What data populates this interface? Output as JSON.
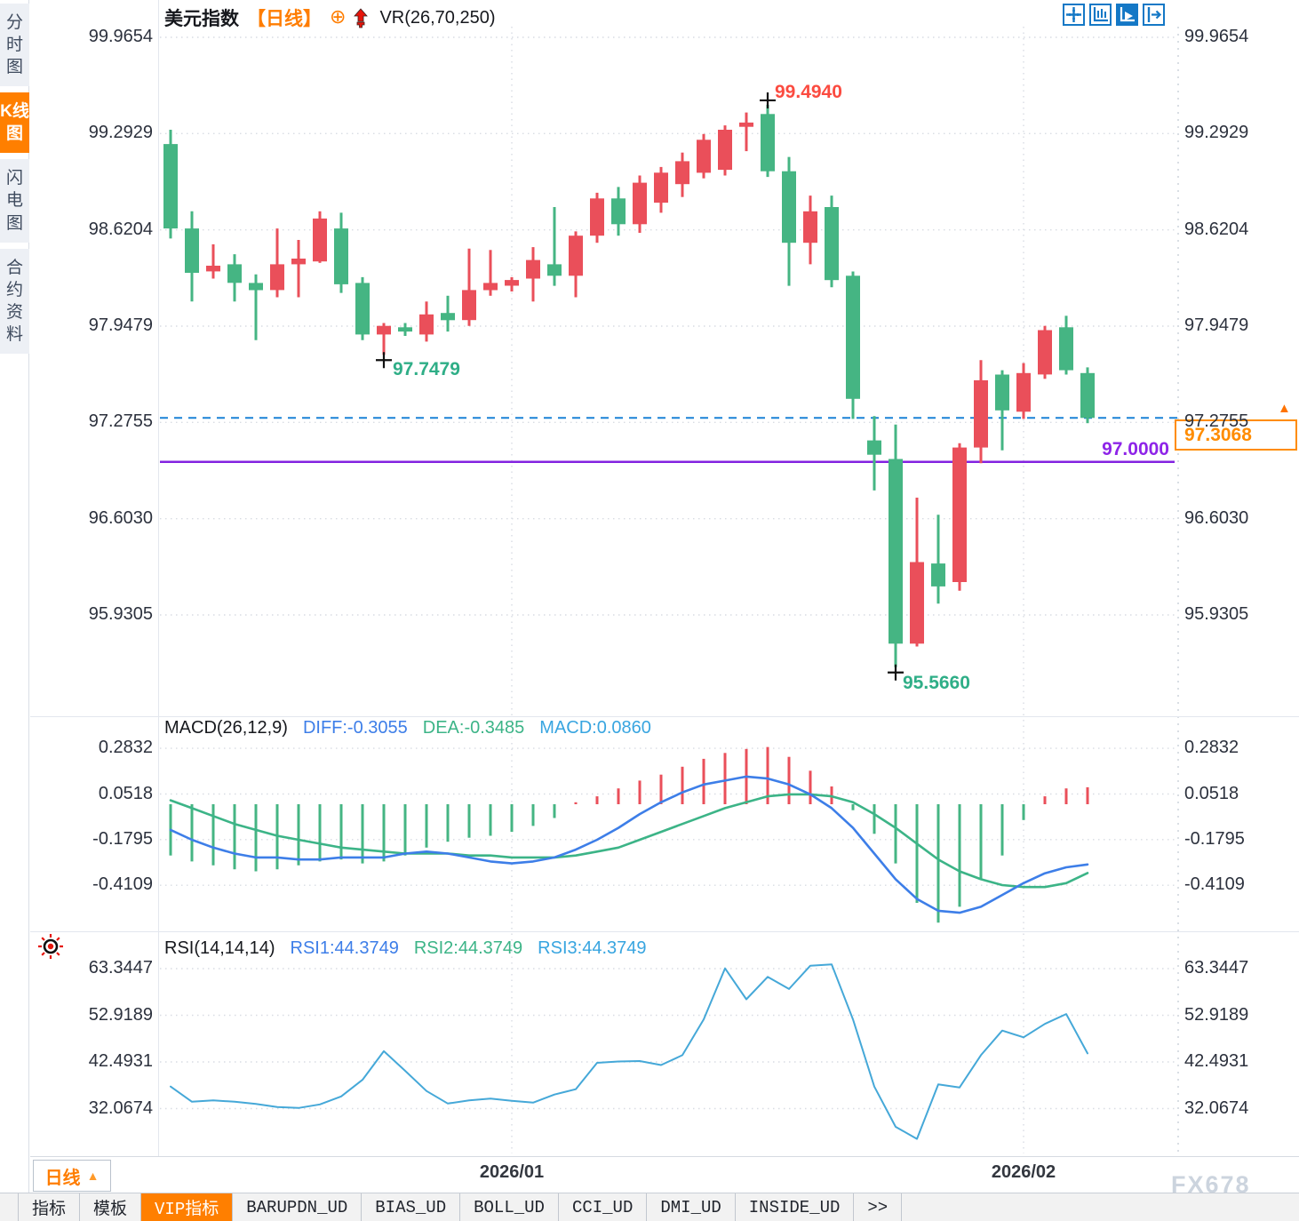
{
  "header": {
    "symbol": "美元指数",
    "period_tag": "【日线】",
    "overlay_indicator": "VR(26,70,250)",
    "toolbar_icons": [
      "crosshair-move-icon",
      "axis-range-icon",
      "axis-cursor-icon",
      "pan-right-icon"
    ]
  },
  "sidebar": {
    "items": [
      {
        "label": "分时图",
        "active": false
      },
      {
        "label": "K线图",
        "active": true
      },
      {
        "label": "闪电图",
        "active": false
      },
      {
        "label": "合约资料",
        "active": false
      }
    ]
  },
  "chart_data": [
    {
      "id": "price",
      "type": "candlestick",
      "symbol": "美元指数",
      "period": "日线",
      "up_color": "#ea4f5a",
      "down_color": "#45b583",
      "y_axis_labels": [
        "99.9654",
        "99.2929",
        "98.6204",
        "97.9479",
        "97.2755",
        "96.6030",
        "95.9305"
      ],
      "x_ticks": [
        {
          "label": "2026/01",
          "bar": 16
        },
        {
          "label": "2026/02",
          "bar": 40
        }
      ],
      "candles_ohlc": [
        [
          99.22,
          99.32,
          98.56,
          98.63
        ],
        [
          98.63,
          98.75,
          98.12,
          98.32
        ],
        [
          98.33,
          98.52,
          98.28,
          98.37
        ],
        [
          98.38,
          98.45,
          98.12,
          98.25
        ],
        [
          98.25,
          98.31,
          97.85,
          98.2
        ],
        [
          98.2,
          98.63,
          98.15,
          98.38
        ],
        [
          98.38,
          98.55,
          98.15,
          98.42
        ],
        [
          98.4,
          98.75,
          98.39,
          98.7
        ],
        [
          98.63,
          98.74,
          98.18,
          98.24
        ],
        [
          98.25,
          98.29,
          97.85,
          97.89
        ],
        [
          97.89,
          97.97,
          97.7479,
          97.95
        ],
        [
          97.94,
          97.97,
          97.88,
          97.91
        ],
        [
          97.89,
          98.12,
          97.84,
          98.03
        ],
        [
          98.04,
          98.16,
          97.91,
          97.99
        ],
        [
          97.99,
          98.49,
          97.95,
          98.2
        ],
        [
          98.2,
          98.48,
          98.16,
          98.25
        ],
        [
          98.23,
          98.29,
          98.19,
          98.27
        ],
        [
          98.28,
          98.5,
          98.12,
          98.41
        ],
        [
          98.38,
          98.78,
          98.23,
          98.3
        ],
        [
          98.3,
          98.61,
          98.15,
          98.58
        ],
        [
          98.58,
          98.88,
          98.53,
          98.84
        ],
        [
          98.84,
          98.92,
          98.58,
          98.66
        ],
        [
          98.66,
          99.0,
          98.6,
          98.95
        ],
        [
          98.81,
          99.06,
          98.74,
          99.02
        ],
        [
          98.94,
          99.16,
          98.85,
          99.1
        ],
        [
          99.02,
          99.29,
          98.98,
          99.25
        ],
        [
          99.04,
          99.35,
          99.0,
          99.32
        ],
        [
          99.34,
          99.44,
          99.17,
          99.37
        ],
        [
          99.43,
          99.494,
          98.99,
          99.03
        ],
        [
          99.03,
          99.13,
          98.23,
          98.53
        ],
        [
          98.53,
          98.86,
          98.38,
          98.75
        ],
        [
          98.78,
          98.86,
          98.22,
          98.27
        ],
        [
          98.3,
          98.33,
          97.3,
          97.44
        ],
        [
          97.15,
          97.32,
          96.8,
          97.05
        ],
        [
          97.02,
          97.26,
          95.566,
          95.73
        ],
        [
          95.73,
          96.75,
          95.71,
          96.3
        ],
        [
          96.29,
          96.63,
          96.01,
          96.13
        ],
        [
          96.16,
          97.13,
          96.1,
          97.1
        ],
        [
          97.1,
          97.71,
          96.99,
          97.57
        ],
        [
          97.61,
          97.64,
          97.08,
          97.36
        ],
        [
          97.35,
          97.69,
          97.3,
          97.62
        ],
        [
          97.61,
          97.95,
          97.58,
          97.92
        ],
        [
          97.94,
          98.02,
          97.61,
          97.64
        ],
        [
          97.62,
          97.66,
          97.27,
          97.3068
        ]
      ],
      "annotations": {
        "high_label": "99.4940",
        "high_bar": 28,
        "high_price": 99.494,
        "low_label": "97.7479",
        "low_bar": 10,
        "low_price": 97.7479,
        "crash_low_label": "95.5660",
        "crash_low_bar": 34,
        "crash_low_price": 95.566,
        "hline_label": "97.0000",
        "hline_value": 97.0,
        "hline_color": "#8322e0",
        "last_price_label": "97.3068",
        "last_price": 97.3068,
        "last_line_color": "#1a82d6",
        "tag_arrow": "▲"
      }
    },
    {
      "id": "macd",
      "type": "macd",
      "title": "MACD(26,12,9)",
      "legend": [
        {
          "label": "DIFF:-0.3055",
          "color": "#3d7ee8"
        },
        {
          "label": "DEA:-0.3485",
          "color": "#3cb487"
        },
        {
          "label": "MACD:0.0860",
          "color": "#38a5e0"
        }
      ],
      "y_axis_labels": [
        "0.2832",
        "0.0518",
        "-0.1795",
        "-0.4109"
      ],
      "histogram": [
        -0.26,
        -0.29,
        -0.31,
        -0.33,
        -0.34,
        -0.33,
        -0.31,
        -0.29,
        -0.28,
        -0.3,
        -0.29,
        -0.26,
        -0.22,
        -0.19,
        -0.17,
        -0.16,
        -0.14,
        -0.11,
        -0.07,
        0.01,
        0.04,
        0.08,
        0.12,
        0.15,
        0.19,
        0.23,
        0.26,
        0.28,
        0.29,
        0.24,
        0.17,
        0.09,
        -0.03,
        -0.15,
        -0.3,
        -0.5,
        -0.6,
        -0.52,
        -0.38,
        -0.26,
        -0.08,
        0.04,
        0.08,
        0.086
      ],
      "diff": [
        -0.13,
        -0.18,
        -0.22,
        -0.25,
        -0.27,
        -0.27,
        -0.28,
        -0.28,
        -0.27,
        -0.27,
        -0.27,
        -0.25,
        -0.24,
        -0.25,
        -0.27,
        -0.29,
        -0.3,
        -0.29,
        -0.27,
        -0.23,
        -0.18,
        -0.12,
        -0.05,
        0.01,
        0.06,
        0.1,
        0.12,
        0.14,
        0.13,
        0.1,
        0.05,
        -0.02,
        -0.12,
        -0.25,
        -0.38,
        -0.48,
        -0.54,
        -0.55,
        -0.52,
        -0.46,
        -0.4,
        -0.35,
        -0.32,
        -0.3055
      ],
      "dea": [
        0.02,
        -0.02,
        -0.06,
        -0.1,
        -0.13,
        -0.16,
        -0.18,
        -0.2,
        -0.22,
        -0.23,
        -0.24,
        -0.25,
        -0.25,
        -0.25,
        -0.26,
        -0.26,
        -0.27,
        -0.27,
        -0.27,
        -0.26,
        -0.24,
        -0.22,
        -0.18,
        -0.14,
        -0.1,
        -0.06,
        -0.02,
        0.01,
        0.04,
        0.05,
        0.05,
        0.04,
        0.01,
        -0.05,
        -0.12,
        -0.2,
        -0.28,
        -0.34,
        -0.38,
        -0.41,
        -0.42,
        -0.42,
        -0.4,
        -0.3485
      ]
    },
    {
      "id": "rsi",
      "type": "line",
      "title": "RSI(14,14,14)",
      "legend": [
        {
          "label": "RSI1:44.3749",
          "color": "#3d7ee8"
        },
        {
          "label": "RSI2:44.3749",
          "color": "#3cb487"
        },
        {
          "label": "RSI3:44.3749",
          "color": "#38a5e0"
        }
      ],
      "y_axis_labels": [
        "63.3447",
        "52.9189",
        "42.4931",
        "32.0674"
      ],
      "line_color": "#45a8d8",
      "rsi": [
        37.0,
        33.6,
        33.9,
        33.6,
        33.1,
        32.4,
        32.2,
        33.0,
        34.8,
        38.5,
        44.9,
        40.5,
        36.0,
        33.2,
        33.9,
        34.3,
        33.8,
        33.4,
        35.2,
        36.4,
        42.3,
        42.6,
        42.7,
        41.8,
        44.0,
        52.0,
        63.4,
        56.5,
        61.5,
        58.8,
        64.0,
        64.3,
        52.0,
        37.0,
        28.0,
        25.3,
        37.5,
        36.8,
        44.0,
        49.5,
        48.0,
        51.0,
        53.2,
        44.4
      ]
    }
  ],
  "footer": {
    "period_selector": "日线",
    "period_selector_arrow": "▲",
    "tabs": [
      {
        "label": "指标",
        "active": false
      },
      {
        "label": "模板",
        "active": false
      },
      {
        "label": "VIP指标",
        "active": true
      },
      {
        "label": "BARUPDN_UD",
        "active": false
      },
      {
        "label": "BIAS_UD",
        "active": false
      },
      {
        "label": "BOLL_UD",
        "active": false
      },
      {
        "label": "CCI_UD",
        "active": false
      },
      {
        "label": "DMI_UD",
        "active": false
      },
      {
        "label": "INSIDE_UD",
        "active": false
      },
      {
        "label": ">>",
        "active": false
      }
    ],
    "watermark": "FX678"
  }
}
